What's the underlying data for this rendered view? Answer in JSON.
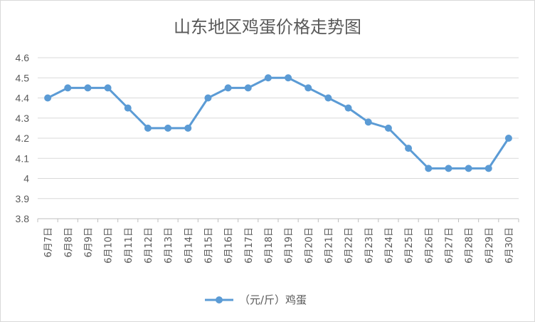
{
  "chart_data": {
    "type": "line",
    "title": "山东地区鸡蛋价格走势图",
    "xlabel": "",
    "ylabel": "",
    "ylim": [
      3.8,
      4.6
    ],
    "yticks": [
      "3.8",
      "3.9",
      "4",
      "4.1",
      "4.2",
      "4.3",
      "4.4",
      "4.5",
      "4.6"
    ],
    "categories": [
      "6月7日",
      "6月8日",
      "6月9日",
      "6月10日",
      "6月11日",
      "6月12日",
      "6月13日",
      "6月14日",
      "6月15日",
      "6月16日",
      "6月17日",
      "6月18日",
      "6月19日",
      "6月20日",
      "6月21日",
      "6月22日",
      "6月23日",
      "6月24日",
      "6月25日",
      "6月26日",
      "6月27日",
      "6月28日",
      "6月29日",
      "6月30日"
    ],
    "series": [
      {
        "name": "（元/斤）鸡蛋",
        "values": [
          4.4,
          4.45,
          4.45,
          4.45,
          4.35,
          4.25,
          4.25,
          4.25,
          4.4,
          4.45,
          4.45,
          4.5,
          4.5,
          4.45,
          4.4,
          4.35,
          4.28,
          4.25,
          4.15,
          4.05,
          4.05,
          4.05,
          4.05,
          4.2
        ]
      }
    ],
    "grid": true,
    "legend": "bottom",
    "colors": {
      "series": "#5b9bd5",
      "grid": "#d9d9d9",
      "text": "#595959"
    }
  }
}
